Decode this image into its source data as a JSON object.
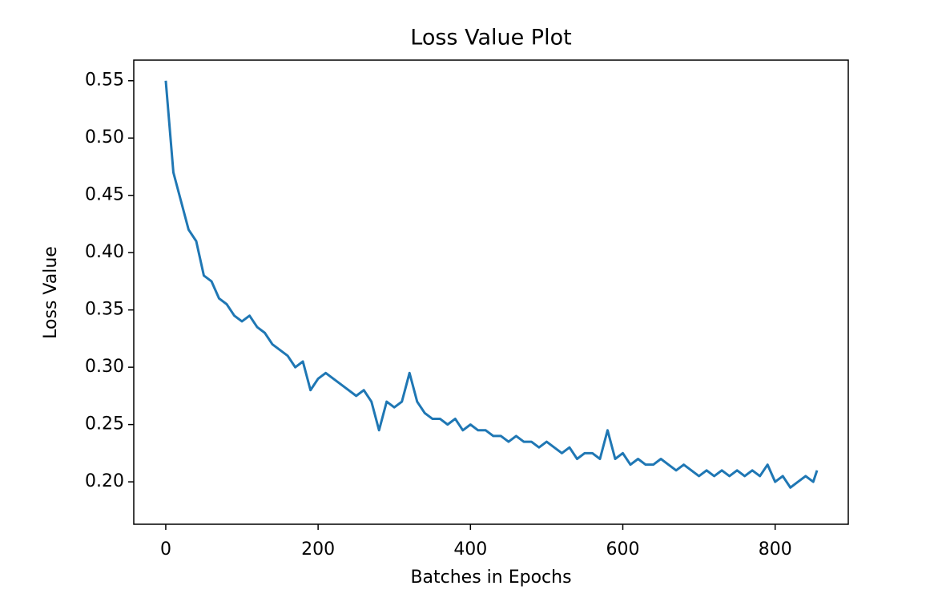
{
  "chart_data": {
    "type": "line",
    "title": "Loss Value Plot",
    "x_label": "Batches in Epochs",
    "y_label": "Loss Value",
    "x": [
      0,
      10,
      20,
      30,
      40,
      50,
      60,
      70,
      80,
      90,
      100,
      110,
      120,
      130,
      140,
      150,
      160,
      170,
      180,
      190,
      200,
      210,
      220,
      230,
      240,
      250,
      260,
      270,
      280,
      290,
      300,
      310,
      320,
      330,
      340,
      350,
      360,
      370,
      380,
      390,
      400,
      410,
      420,
      430,
      440,
      450,
      460,
      470,
      480,
      490,
      500,
      510,
      520,
      530,
      540,
      550,
      560,
      570,
      580,
      590,
      600,
      610,
      620,
      630,
      640,
      650,
      660,
      670,
      680,
      690,
      700,
      710,
      720,
      730,
      740,
      750,
      760,
      770,
      780,
      790,
      800,
      810,
      820,
      830,
      840,
      850,
      855
    ],
    "series": [
      {
        "name": "Loss",
        "color": "#1f77b4",
        "values": [
          0.55,
          0.47,
          0.445,
          0.42,
          0.41,
          0.38,
          0.375,
          0.36,
          0.355,
          0.345,
          0.34,
          0.345,
          0.335,
          0.33,
          0.32,
          0.315,
          0.31,
          0.3,
          0.305,
          0.28,
          0.29,
          0.295,
          0.29,
          0.285,
          0.28,
          0.275,
          0.28,
          0.27,
          0.245,
          0.27,
          0.265,
          0.27,
          0.295,
          0.27,
          0.26,
          0.255,
          0.255,
          0.25,
          0.255,
          0.245,
          0.25,
          0.245,
          0.245,
          0.24,
          0.24,
          0.235,
          0.24,
          0.235,
          0.235,
          0.23,
          0.235,
          0.23,
          0.225,
          0.23,
          0.22,
          0.225,
          0.225,
          0.22,
          0.245,
          0.22,
          0.225,
          0.215,
          0.22,
          0.215,
          0.215,
          0.22,
          0.215,
          0.21,
          0.215,
          0.21,
          0.205,
          0.21,
          0.205,
          0.21,
          0.205,
          0.21,
          0.205,
          0.21,
          0.205,
          0.215,
          0.2,
          0.205,
          0.195,
          0.2,
          0.205,
          0.2,
          0.21
        ]
      }
    ],
    "xlim": [
      -42,
      896
    ],
    "ylim": [
      0.163,
      0.568
    ],
    "xticks": [
      0,
      200,
      400,
      600,
      800
    ],
    "yticks": [
      {
        "value": 0.2,
        "label": "0.20"
      },
      0.25,
      {
        "value": 0.3,
        "label": "0.30"
      },
      0.35,
      {
        "value": 0.4,
        "label": "0.40"
      },
      0.45,
      {
        "value": 0.5,
        "label": "0.50"
      },
      0.55
    ],
    "grid": false
  }
}
